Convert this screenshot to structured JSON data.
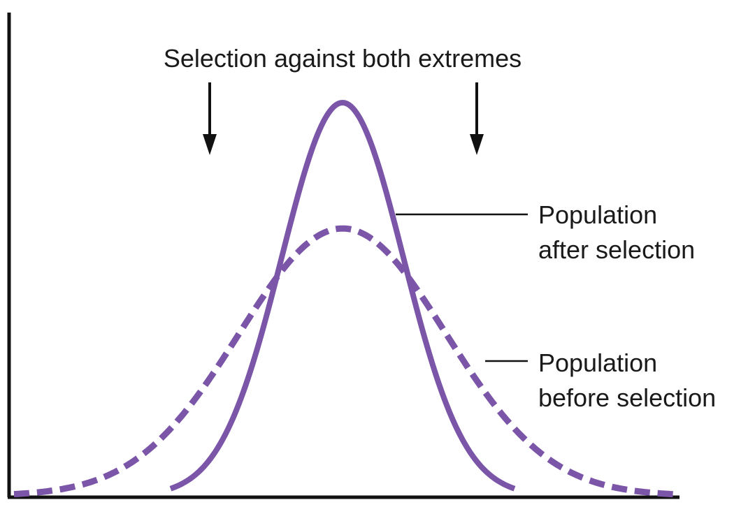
{
  "title": "Selection against both extremes",
  "labels": {
    "after_line1": "Population",
    "after_line2": "after selection",
    "before_line1": "Population",
    "before_line2": "before selection"
  },
  "colors": {
    "curve": "#7b55a8",
    "axis": "#111111",
    "text": "#1a1a1a"
  },
  "curves": {
    "before_selection": {
      "style": "dashed",
      "relative_peak": 0.68
    },
    "after_selection": {
      "style": "solid",
      "relative_peak": 1.0
    }
  },
  "arrows": [
    "down-arrow-left",
    "down-arrow-right"
  ]
}
